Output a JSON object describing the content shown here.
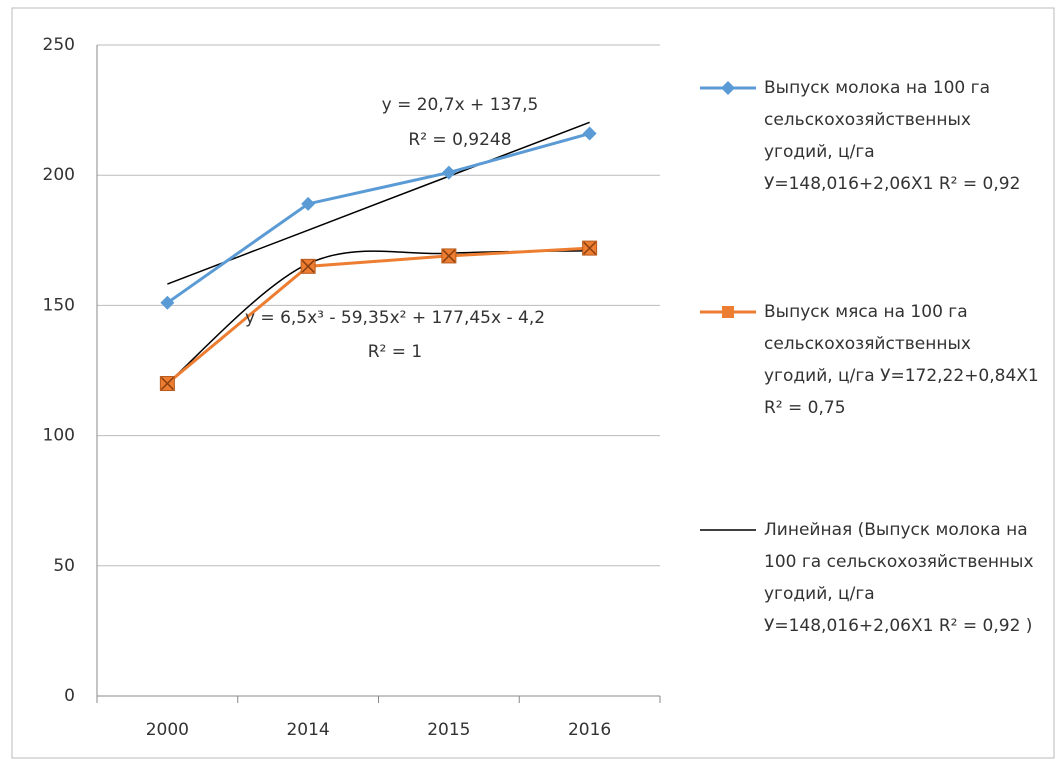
{
  "chart_data": {
    "type": "line",
    "categories": [
      "2000",
      "2014",
      "2015",
      "2016"
    ],
    "series": [
      {
        "name": "Выпуск молока на 100 га сельскохозяйственных угодий, ц/га У=148,016+2,06Х1 R² = 0,92",
        "color": "#5b9bd5",
        "marker": "diamond",
        "values": [
          151,
          189,
          201,
          216
        ]
      },
      {
        "name": "Выпуск мяса на 100 га сельскохозяйственных угодий, ц/га У=172,22+0,84Х1 R² = 0,75",
        "color": "#ed7d31",
        "marker": "square-x",
        "values": [
          120,
          165,
          169,
          172
        ]
      }
    ],
    "trendlines": [
      {
        "name": "Линейная (Выпуск молока на 100 га сельскохозяйственных угодий, ц/га У=148,016+2,06Х1 R² = 0,92 )",
        "kind": "linear",
        "color": "#000000",
        "values": [
          158.2,
          178.9,
          199.6,
          220.3
        ],
        "equation": "y = 20,7x + 137,5",
        "r2": "R² = 0,9248"
      },
      {
        "kind": "polynomial",
        "color": "#000000",
        "values": [
          120,
          166,
          170,
          171
        ],
        "equation": "y = 6,5x³ - 59,35x² + 177,45x - 4,2",
        "r2": "R² = 1"
      }
    ],
    "ylim": [
      0,
      250
    ],
    "yticks": [
      0,
      50,
      100,
      150,
      200,
      250
    ],
    "grid": true
  }
}
